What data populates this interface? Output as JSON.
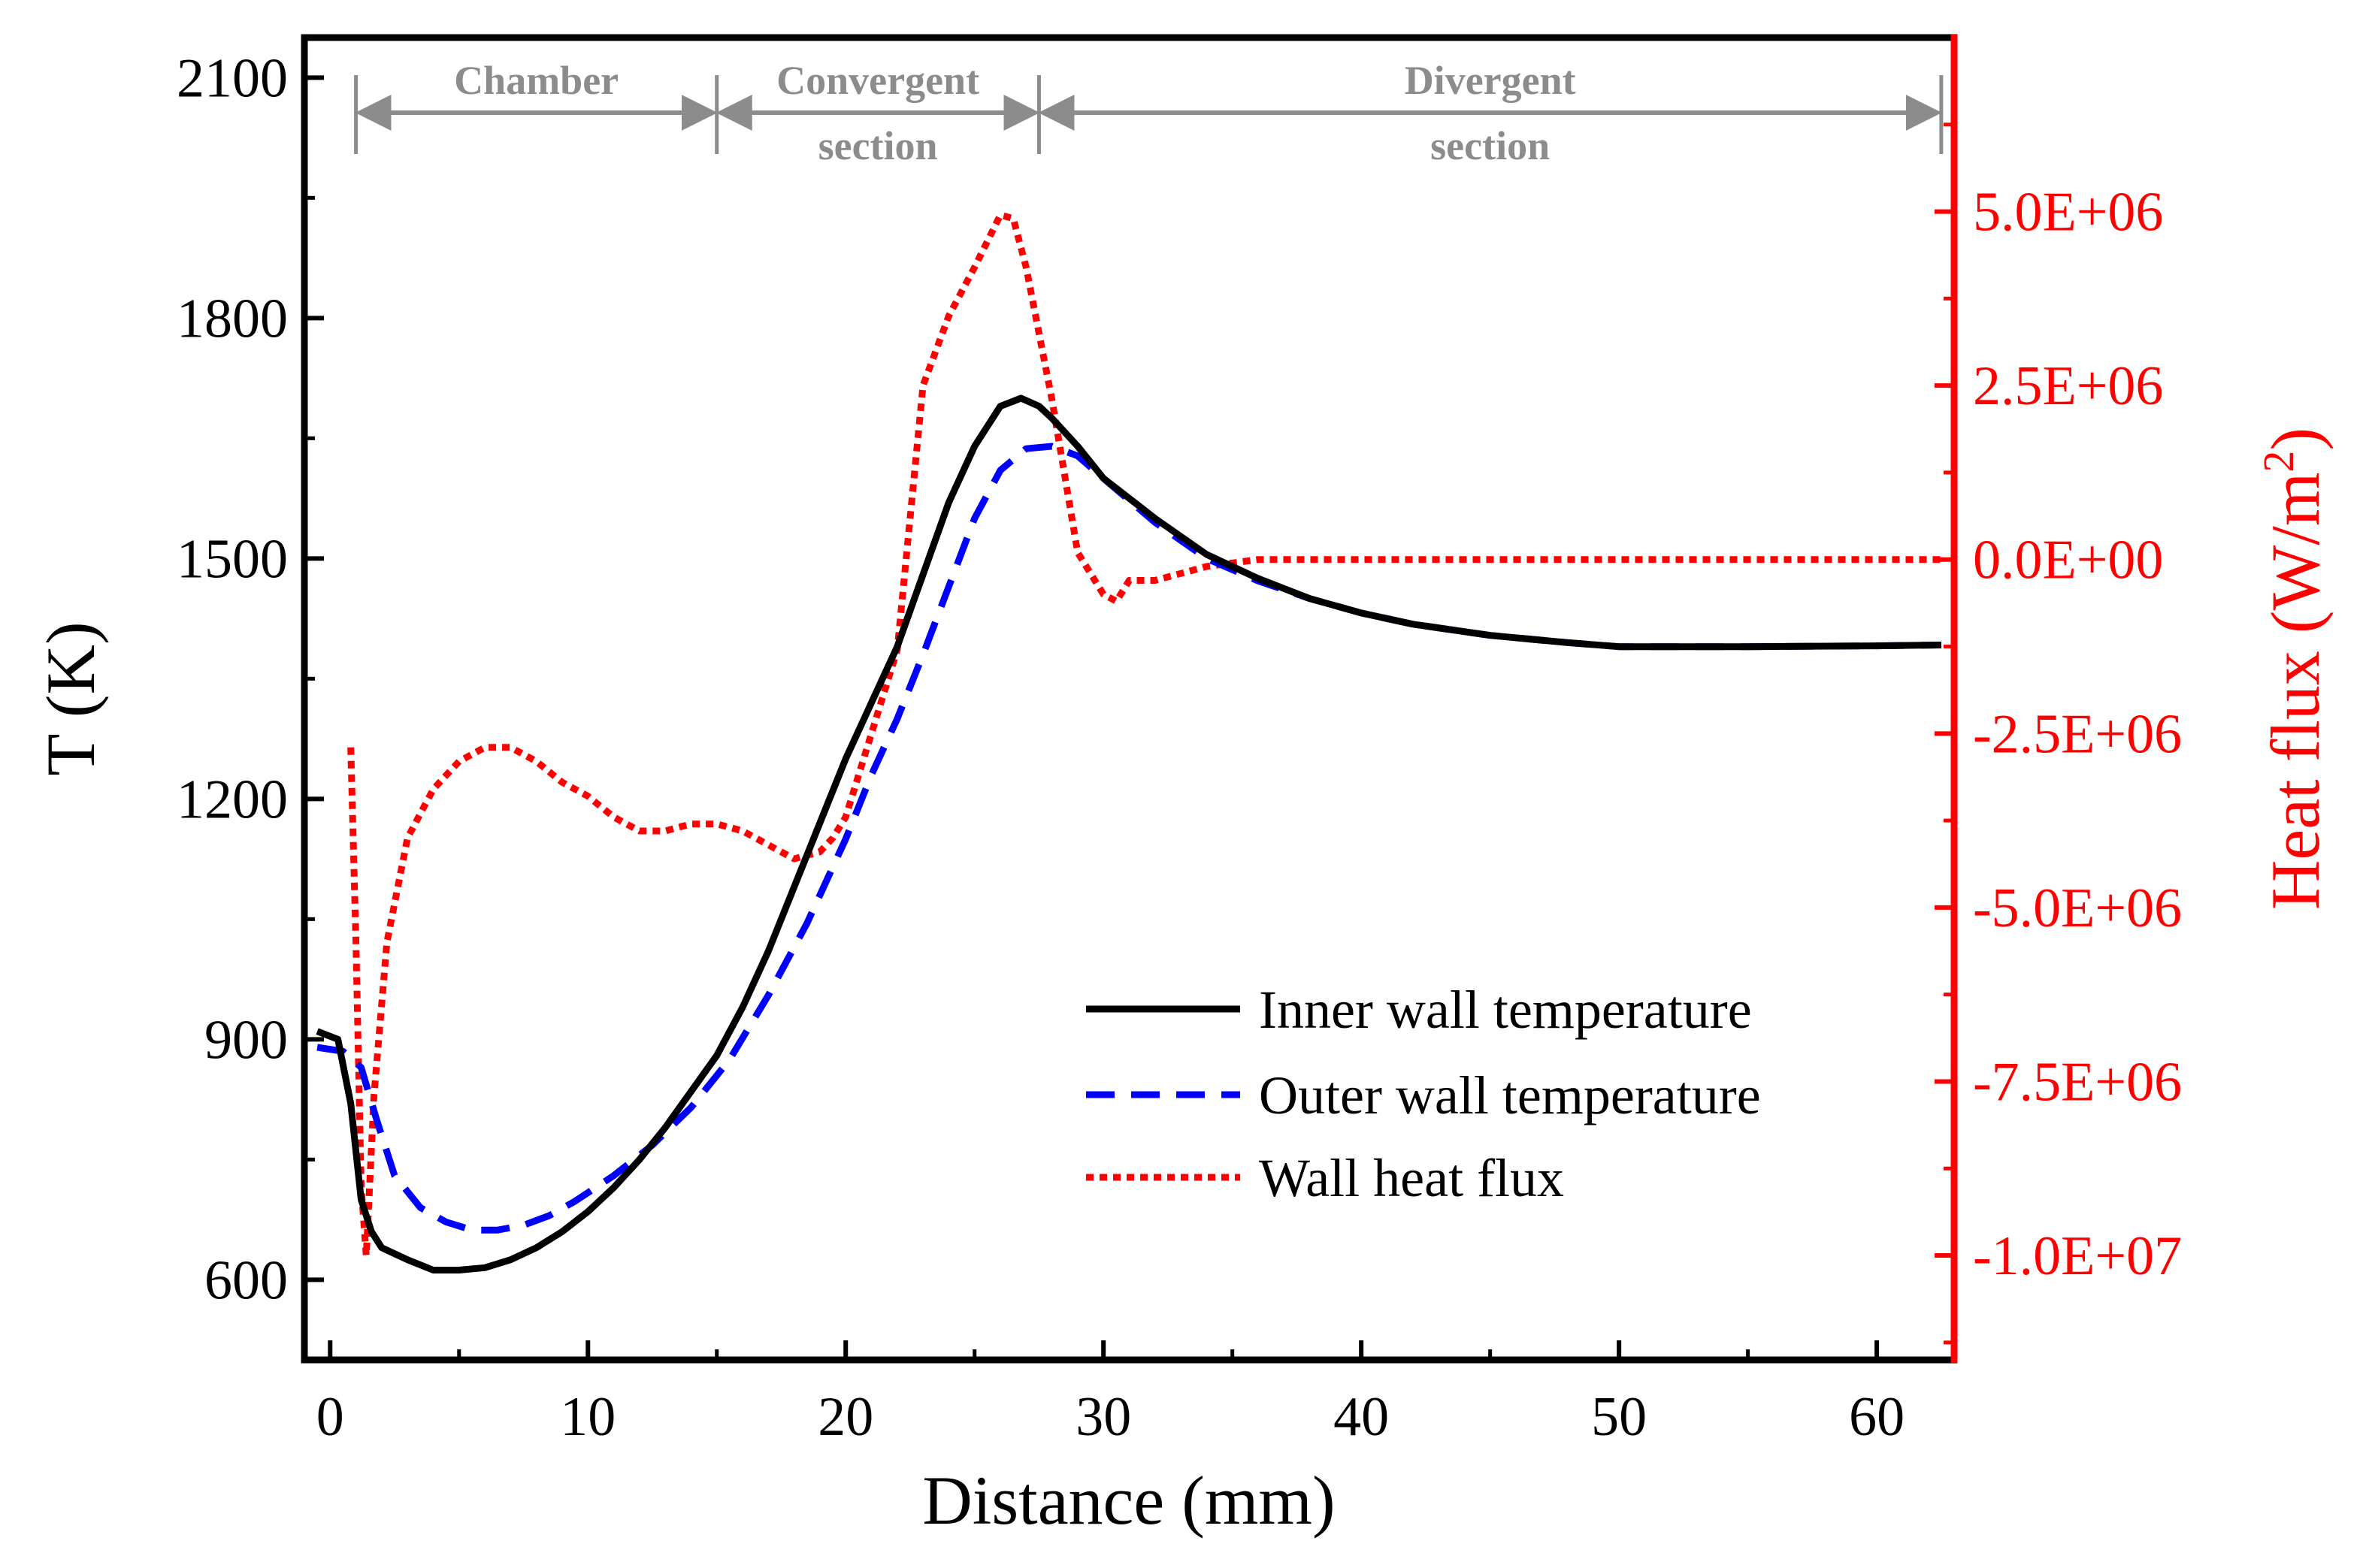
{
  "chart_data": {
    "type": "line",
    "xlabel": "Distance (mm)",
    "ylabel_left": "T (K)",
    "ylabel_right_prefix": "Heat flux (W/m",
    "ylabel_right_sup": "2",
    "ylabel_right_suffix": ")",
    "xlim": [
      -1,
      63
    ],
    "ylim_left": [
      500,
      2150
    ],
    "ylim_right": [
      -11500000,
      7500000
    ],
    "x_ticks": [
      0,
      10,
      20,
      30,
      40,
      50,
      60
    ],
    "x_tick_labels": [
      "0",
      "10",
      "20",
      "30",
      "40",
      "50",
      "60"
    ],
    "y_left_ticks": [
      600,
      900,
      1200,
      1500,
      1800,
      2100
    ],
    "y_left_tick_labels": [
      "600",
      "900",
      "1200",
      "1500",
      "1800",
      "2100"
    ],
    "y_right_ticks": [
      -10000000,
      -7500000,
      -5000000,
      -2500000,
      0,
      2500000,
      5000000
    ],
    "y_right_tick_labels": [
      "-1.0E+07",
      "-7.5E+06",
      "-5.0E+06",
      "-2.5E+06",
      "0.0E+00",
      "2.5E+06",
      "5.0E+06"
    ],
    "grid": false,
    "legend_position": "bottom-right",
    "colors": {
      "inner": "#000000",
      "outer": "#0000ff",
      "flux": "#ff0000",
      "right_axis": "#ff0000",
      "section": "#8c8c8c"
    },
    "sections": [
      {
        "label_line1": "Chamber",
        "label_line2": "",
        "x_start": 1,
        "x_end": 15
      },
      {
        "label_line1": "Convergent",
        "label_line2": "section",
        "x_start": 15,
        "x_end": 27.5
      },
      {
        "label_line1": "Divergent",
        "label_line2": "section",
        "x_start": 27.5,
        "x_end": 62.5
      }
    ],
    "series": [
      {
        "name": "Inner wall temperature",
        "axis": "left",
        "style": "solid",
        "x": [
          -0.5,
          0.3,
          0.8,
          1.2,
          1.6,
          2,
          3,
          4,
          5,
          6,
          7,
          8,
          9,
          10,
          11,
          12,
          13,
          14,
          15,
          16,
          17,
          18,
          19,
          20,
          21,
          22,
          23,
          24,
          25,
          26,
          26.8,
          27.5,
          28,
          29,
          30,
          32,
          34,
          36,
          38,
          40,
          42,
          45,
          48,
          50,
          55,
          60,
          62.5
        ],
        "y": [
          910,
          900,
          820,
          700,
          660,
          640,
          625,
          612,
          612,
          615,
          625,
          640,
          660,
          685,
          715,
          750,
          790,
          835,
          880,
          940,
          1010,
          1090,
          1170,
          1250,
          1320,
          1390,
          1480,
          1570,
          1640,
          1690,
          1700,
          1690,
          1675,
          1640,
          1600,
          1550,
          1505,
          1475,
          1450,
          1432,
          1418,
          1404,
          1395,
          1390,
          1390,
          1391,
          1392
        ]
      },
      {
        "name": "Outer wall temperature",
        "axis": "left",
        "style": "dashed",
        "x": [
          -0.5,
          0.5,
          1.2,
          1.8,
          2.5,
          3.5,
          4.5,
          5.5,
          6.5,
          7.5,
          8.5,
          9.5,
          11,
          12.5,
          14,
          15.5,
          17,
          18.5,
          20,
          21,
          22,
          23,
          24,
          25,
          26,
          27,
          28,
          29,
          30,
          32,
          34,
          36,
          38,
          40,
          42,
          45,
          48,
          50,
          55,
          60,
          62.5
        ],
        "y": [
          890,
          885,
          865,
          800,
          730,
          690,
          672,
          662,
          662,
          668,
          680,
          698,
          730,
          768,
          815,
          875,
          955,
          1045,
          1150,
          1230,
          1300,
          1380,
          1465,
          1550,
          1610,
          1637,
          1640,
          1628,
          1600,
          1545,
          1500,
          1472,
          1450,
          1432,
          1418,
          1404,
          1395,
          1390,
          1390,
          1391,
          1392
        ]
      },
      {
        "name": "Wall heat flux",
        "axis": "right",
        "style": "dotted",
        "x": [
          0.8,
          1.0,
          1.2,
          1.4,
          1.7,
          2.2,
          3,
          4,
          5,
          6,
          7,
          8,
          9,
          10,
          11,
          12,
          13,
          14,
          15,
          16,
          17,
          18,
          19,
          19.5,
          20,
          21,
          22,
          23,
          24,
          25,
          26,
          26.5,
          27,
          28,
          29,
          30,
          30.5,
          31,
          32,
          33,
          34,
          36,
          40,
          45,
          50,
          55,
          60,
          62.5
        ],
        "y": [
          -2700000,
          -5500000,
          -9000000,
          -10000000,
          -7700000,
          -5500000,
          -4000000,
          -3300000,
          -2900000,
          -2700000,
          -2700000,
          -2900000,
          -3200000,
          -3400000,
          -3700000,
          -3900000,
          -3900000,
          -3800000,
          -3800000,
          -3900000,
          -4100000,
          -4300000,
          -4200000,
          -4000000,
          -3700000,
          -2500000,
          -1300000,
          2500000,
          3500000,
          4200000,
          4950000,
          4900000,
          4200000,
          2300000,
          100000,
          -500000,
          -600000,
          -300000,
          -300000,
          -200000,
          -100000,
          0,
          0,
          0,
          0,
          0,
          0,
          0
        ]
      }
    ]
  }
}
